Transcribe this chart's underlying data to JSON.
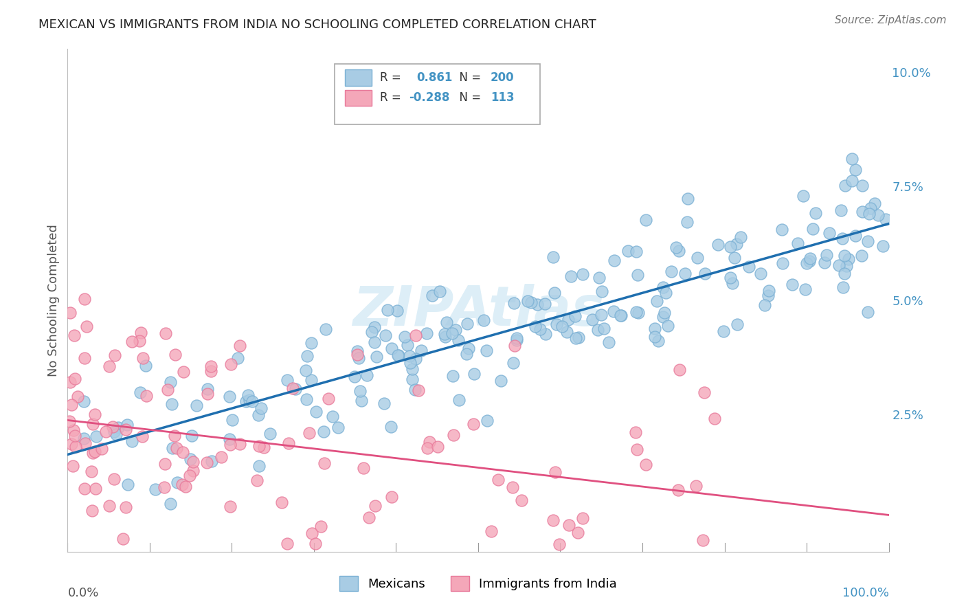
{
  "title": "MEXICAN VS IMMIGRANTS FROM INDIA NO SCHOOLING COMPLETED CORRELATION CHART",
  "source": "Source: ZipAtlas.com",
  "ylabel": "No Schooling Completed",
  "legend_blue_r": "0.861",
  "legend_blue_n": "200",
  "legend_pink_r": "-0.288",
  "legend_pink_n": "113",
  "legend_label_blue": "Mexicans",
  "legend_label_pink": "Immigrants from India",
  "blue_color": "#a8cce4",
  "pink_color": "#f4a7b9",
  "blue_edge_color": "#7ab0d4",
  "pink_edge_color": "#e8799a",
  "blue_line_color": "#1f6faf",
  "pink_line_color": "#e05080",
  "title_color": "#222222",
  "axis_label_color": "#555555",
  "tick_color_blue": "#4393c3",
  "watermark_color": "#ddeef7",
  "background_color": "#ffffff",
  "grid_color": "#cccccc",
  "xlim": [
    0,
    1
  ],
  "ylim": [
    -0.005,
    0.105
  ],
  "yticks": [
    0.025,
    0.05,
    0.075,
    0.1
  ],
  "ytick_labels": [
    "2.5%",
    "5.0%",
    "7.5%",
    "10.0%"
  ],
  "figsize": [
    14.06,
    8.92
  ],
  "dpi": 100
}
